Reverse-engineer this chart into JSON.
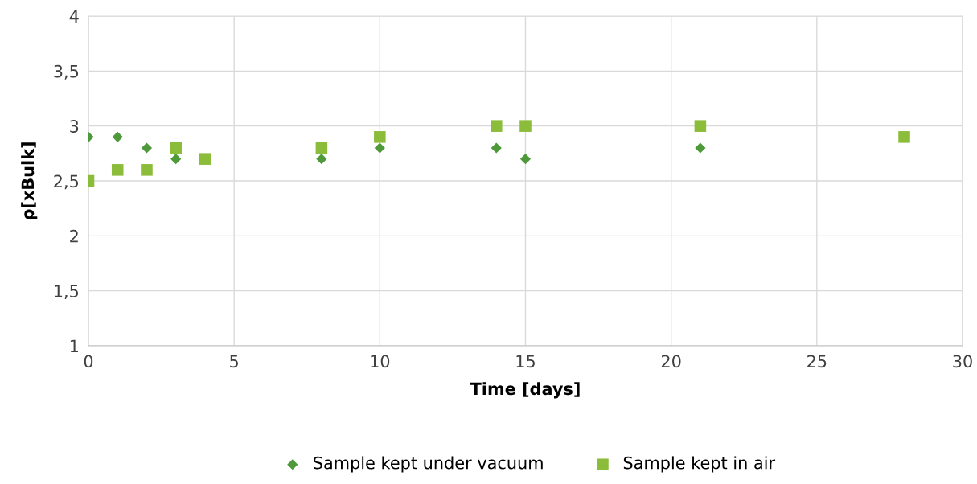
{
  "chart_data": {
    "type": "scatter",
    "xlabel": "Time [days]",
    "ylabel": "ρ[xBulk]",
    "series": [
      {
        "name": "Sample kept under vacuum",
        "color": "#4e9a3a",
        "marker": "diamond",
        "x": [
          0,
          1,
          2,
          3,
          8,
          10,
          14,
          15,
          21
        ],
        "values": [
          2.9,
          2.9,
          2.8,
          2.7,
          2.7,
          2.8,
          2.8,
          2.7,
          2.8
        ]
      },
      {
        "name": "Sample kept in air",
        "color": "#8cbd3a",
        "marker": "square",
        "x": [
          0,
          1,
          2,
          3,
          4,
          8,
          10,
          14,
          15,
          21,
          28
        ],
        "values": [
          2.5,
          2.6,
          2.6,
          2.8,
          2.7,
          2.8,
          2.9,
          3.0,
          3.0,
          3.0,
          2.9
        ]
      }
    ],
    "xlim": [
      0,
      30
    ],
    "xticks": [
      0,
      5,
      10,
      15,
      20,
      25,
      30
    ],
    "ylim": [
      1,
      4
    ],
    "yticks": [
      1,
      {
        "value": 1.5,
        "label": "1,5"
      },
      2,
      {
        "value": 2.5,
        "label": "2,5"
      },
      3,
      {
        "value": 3.5,
        "label": "3,5"
      },
      4
    ],
    "grid": true,
    "legend": "bottom"
  }
}
